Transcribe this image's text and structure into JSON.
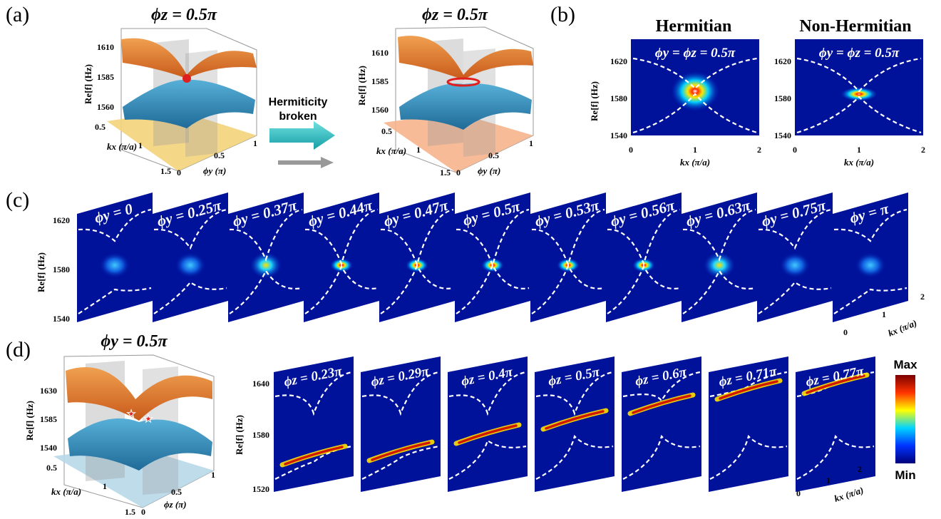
{
  "panels": {
    "a": "(a)",
    "b": "(b)",
    "c": "(c)",
    "d": "(d)"
  },
  "panel_a": {
    "left_title": "ϕz = 0.5π",
    "right_title": "ϕz = 0.5π",
    "arrow_text_1": "Hermiticity",
    "arrow_text_2": "broken",
    "z_ticks": [
      "1610",
      "1585",
      "1560"
    ],
    "z_label": "Re[f] (Hz)",
    "kx_ticks": [
      "0.5",
      "1",
      "1.5"
    ],
    "kx_label": "kx (π/a)",
    "phi_ticks": [
      "0",
      "0.5",
      "1"
    ],
    "phi_label": "ϕy (π)",
    "colors": {
      "upper": "#e8893a",
      "lower": "#3a8fc0",
      "floor_left": "#f3d37a",
      "floor_right": "#f6b48c",
      "ep": "#e0201e"
    }
  },
  "panel_b": {
    "titles": [
      "Hermitian",
      "Non-Hermitian"
    ],
    "insets": [
      "ϕy = ϕz = 0.5π",
      "ϕy = ϕz = 0.5π"
    ],
    "y_ticks": [
      "1620",
      "1580",
      "1540"
    ],
    "y_label": "Re[f] (Hz)",
    "x_ticks": [
      "0",
      "1",
      "2"
    ],
    "x_label": "kx (π/a)"
  },
  "panel_c": {
    "labels": [
      "ϕy = 0",
      "ϕy = 0.25π",
      "ϕy = 0.37π",
      "ϕy = 0.44π",
      "ϕy = 0.47π",
      "ϕy = 0.5π",
      "ϕy = 0.53π",
      "ϕy = 0.56π",
      "ϕy = 0.63π",
      "ϕy = 0.75π",
      "ϕy = π"
    ],
    "y_ticks": [
      "1620",
      "1580",
      "1540"
    ],
    "y_label": "Re[f] (Hz)",
    "x_ticks": [
      "0",
      "1",
      "2"
    ],
    "x_label": "kx (π/a)"
  },
  "panel_d": {
    "title": "ϕy = 0.5π",
    "z_ticks": [
      "1630",
      "1585",
      "1540"
    ],
    "z_label": "Re[f] (Hz)",
    "kx_ticks": [
      "0.5",
      "1",
      "1.5"
    ],
    "kx_label": "kx (π/a)",
    "phi_ticks": [
      "0",
      "0.5",
      "1"
    ],
    "phi_label": "ϕz (π)",
    "labels": [
      "ϕz = 0.23π",
      "ϕz = 0.29π",
      "ϕz = 0.4π",
      "ϕz = 0.5π",
      "ϕz = 0.6π",
      "ϕz = 0.71π",
      "ϕz = 0.77π"
    ],
    "y_ticks": [
      "1640",
      "1580",
      "1520"
    ],
    "y_label": "Re[f] (Hz)",
    "x_ticks": [
      "0",
      "1",
      "2"
    ],
    "x_label": "kx (π/a)",
    "colors": {
      "upper": "#e8893a",
      "lower": "#3a8fc0",
      "floor": "#b7d8e8",
      "star": "#e0201e"
    }
  },
  "colorbar": {
    "max_label": "Max",
    "min_label": "Min",
    "stops": [
      "#00007a",
      "#0033ff",
      "#00d4ff",
      "#ffff00",
      "#ff3300",
      "#7a0000"
    ]
  }
}
